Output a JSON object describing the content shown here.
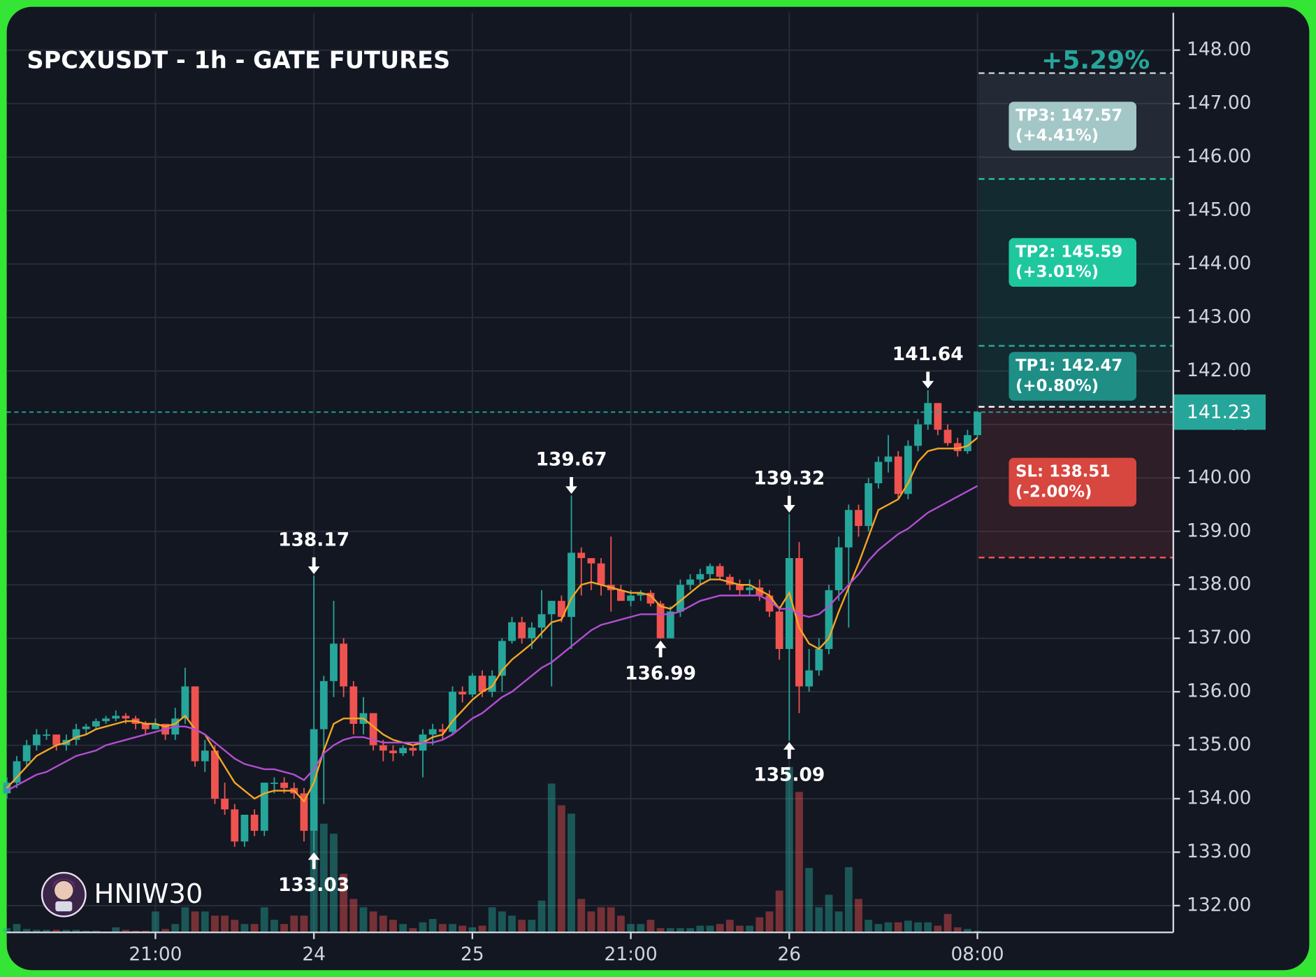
{
  "chart_data": {
    "type": "candlestick",
    "title": "SPCXUSDT - 1h - GATE FUTURES",
    "total_change": "+5.29%",
    "watermark": "HNIW30",
    "up_color": "#26a69a",
    "down_color": "#ef5350",
    "grid": true,
    "ylim": [
      131.5,
      148.7
    ],
    "yticks": [
      {
        "value": 132,
        "label": "132.00"
      },
      {
        "value": 133,
        "label": "133.00"
      },
      {
        "value": 134,
        "label": "134.00"
      },
      {
        "value": 135,
        "label": "135.00"
      },
      {
        "value": 136,
        "label": "136.00"
      },
      {
        "value": 137,
        "label": "137.00"
      },
      {
        "value": 138,
        "label": "138.00"
      },
      {
        "value": 139,
        "label": "139.00"
      },
      {
        "value": 140,
        "label": "140.00"
      },
      {
        "value": 141,
        "label": "141.00"
      },
      {
        "value": 142,
        "label": "142.00"
      },
      {
        "value": 143,
        "label": "143.00"
      },
      {
        "value": 144,
        "label": "144.00"
      },
      {
        "value": 145,
        "label": "145.00"
      },
      {
        "value": 146,
        "label": "146.00"
      },
      {
        "value": 147,
        "label": "147.00"
      },
      {
        "value": 148,
        "label": "148.00"
      }
    ],
    "categories": [
      null,
      null,
      null,
      null,
      null,
      null,
      null,
      null,
      null,
      null,
      null,
      null,
      null,
      null,
      null,
      "21:00",
      null,
      null,
      null,
      null,
      null,
      null,
      null,
      null,
      null,
      null,
      null,
      null,
      null,
      null,
      null,
      "24",
      null,
      null,
      null,
      null,
      null,
      null,
      null,
      null,
      null,
      null,
      null,
      null,
      null,
      null,
      null,
      "25",
      null,
      null,
      null,
      null,
      null,
      null,
      null,
      null,
      null,
      null,
      null,
      null,
      null,
      null,
      null,
      "21:00",
      null,
      null,
      null,
      null,
      null,
      null,
      null,
      null,
      null,
      null,
      null,
      null,
      null,
      null,
      null,
      "26",
      null,
      null,
      null,
      null,
      null,
      null,
      null,
      null,
      null,
      null,
      null,
      null,
      null,
      null,
      null,
      null,
      null,
      null,
      "08:00"
    ],
    "open": [
      134.1,
      134.3,
      134.7,
      135.0,
      135.2,
      135.2,
      135.0,
      135.1,
      135.3,
      135.35,
      135.45,
      135.5,
      135.55,
      135.5,
      135.4,
      135.3,
      135.4,
      135.2,
      135.5,
      136.1,
      134.7,
      134.9,
      134.0,
      133.8,
      133.2,
      133.7,
      133.4,
      134.3,
      134.3,
      134.2,
      134.1,
      133.4,
      135.3,
      136.2,
      136.9,
      136.1,
      135.4,
      135.6,
      135.0,
      134.9,
      134.85,
      134.95,
      134.9,
      135.2,
      135.3,
      135.25,
      136.0,
      135.95,
      136.3,
      136.0,
      136.3,
      136.95,
      137.3,
      137.0,
      137.2,
      137.45,
      137.7,
      137.4,
      138.6,
      138.5,
      138.4,
      138.0,
      137.9,
      137.7,
      137.8,
      137.85,
      137.65,
      137.0,
      137.5,
      138.0,
      138.1,
      138.2,
      138.35,
      138.15,
      138.0,
      137.9,
      137.95,
      137.8,
      137.5,
      136.8,
      138.5,
      136.1,
      136.4,
      136.8,
      137.9,
      138.7,
      139.4,
      139.1,
      139.9,
      140.3,
      140.4,
      139.7,
      140.6,
      141.0,
      141.4,
      140.9,
      140.65,
      140.5,
      140.8
    ],
    "high": [
      134.4,
      134.8,
      135.1,
      135.3,
      135.3,
      135.2,
      135.2,
      135.4,
      135.4,
      135.5,
      135.55,
      135.65,
      135.6,
      135.55,
      135.45,
      135.5,
      135.4,
      135.7,
      136.45,
      136.1,
      135.1,
      135.0,
      134.3,
      133.9,
      133.7,
      133.8,
      134.3,
      134.4,
      134.4,
      134.3,
      134.2,
      138.17,
      136.3,
      137.7,
      137.0,
      136.2,
      135.9,
      135.6,
      135.1,
      135.0,
      135.0,
      135.0,
      135.3,
      135.4,
      135.4,
      136.1,
      136.1,
      136.35,
      136.4,
      136.4,
      137.0,
      137.4,
      137.4,
      137.3,
      137.9,
      137.7,
      137.8,
      139.67,
      138.7,
      138.5,
      138.5,
      138.9,
      138.0,
      137.9,
      137.9,
      137.9,
      137.7,
      137.6,
      138.1,
      138.2,
      138.3,
      138.4,
      138.4,
      138.2,
      138.1,
      138.1,
      138.1,
      137.9,
      137.6,
      139.32,
      138.8,
      136.8,
      137.0,
      138.0,
      138.9,
      139.5,
      139.5,
      140.0,
      140.4,
      140.8,
      140.5,
      140.7,
      141.1,
      141.64,
      141.4,
      141.0,
      140.75,
      140.9,
      141.25
    ],
    "low": [
      134.0,
      134.2,
      134.6,
      134.9,
      135.1,
      134.9,
      134.9,
      135.0,
      135.2,
      135.3,
      135.4,
      135.45,
      135.4,
      135.3,
      135.2,
      135.3,
      135.1,
      135.1,
      135.4,
      134.6,
      134.5,
      133.9,
      133.7,
      133.1,
      133.1,
      133.3,
      133.3,
      134.1,
      134.1,
      134.0,
      133.2,
      133.03,
      133.9,
      135.9,
      135.9,
      135.2,
      135.2,
      134.9,
      134.7,
      134.7,
      134.8,
      134.8,
      134.4,
      135.0,
      135.1,
      135.2,
      135.8,
      135.9,
      135.9,
      135.9,
      136.0,
      136.9,
      136.9,
      136.8,
      137.0,
      136.1,
      137.3,
      136.8,
      137.8,
      137.9,
      137.8,
      137.5,
      137.7,
      137.6,
      137.7,
      137.6,
      136.99,
      137.0,
      137.4,
      137.9,
      138.0,
      138.1,
      138.1,
      137.9,
      137.8,
      137.8,
      137.7,
      137.4,
      136.6,
      135.09,
      135.6,
      136.0,
      136.3,
      136.7,
      137.7,
      137.2,
      138.9,
      139.0,
      139.8,
      140.1,
      139.6,
      139.6,
      140.5,
      140.9,
      140.8,
      140.6,
      140.4,
      140.45,
      140.75
    ],
    "close": [
      134.3,
      134.7,
      135.0,
      135.2,
      135.2,
      135.0,
      135.1,
      135.3,
      135.35,
      135.45,
      135.5,
      135.55,
      135.5,
      135.4,
      135.3,
      135.4,
      135.2,
      135.5,
      136.1,
      134.7,
      134.9,
      134.0,
      133.8,
      133.2,
      133.7,
      133.4,
      134.3,
      134.3,
      134.2,
      134.1,
      133.4,
      135.3,
      136.2,
      136.9,
      136.1,
      135.4,
      135.6,
      135.0,
      134.9,
      134.85,
      134.95,
      134.9,
      135.2,
      135.3,
      135.25,
      136.0,
      135.95,
      136.3,
      136.0,
      136.3,
      136.95,
      137.3,
      137.0,
      137.2,
      137.45,
      137.7,
      137.4,
      138.6,
      138.5,
      138.4,
      138.0,
      137.9,
      137.7,
      137.8,
      137.85,
      137.65,
      137.0,
      137.5,
      138.0,
      138.1,
      138.2,
      138.35,
      138.15,
      138.0,
      137.9,
      137.95,
      137.8,
      137.5,
      136.8,
      138.5,
      136.1,
      136.4,
      136.8,
      137.9,
      138.7,
      139.4,
      139.1,
      139.9,
      140.3,
      140.4,
      139.7,
      140.6,
      141.0,
      141.4,
      140.9,
      140.65,
      140.5,
      140.8,
      141.23
    ],
    "volume": [
      5,
      10,
      4,
      3,
      3,
      3,
      3,
      3,
      2,
      2,
      0,
      6,
      3,
      2,
      2,
      25,
      4,
      10,
      30,
      25,
      25,
      20,
      20,
      15,
      10,
      10,
      30,
      15,
      10,
      20,
      20,
      125,
      130,
      118,
      70,
      40,
      30,
      25,
      20,
      15,
      10,
      5,
      12,
      16,
      10,
      10,
      8,
      6,
      8,
      30,
      25,
      20,
      15,
      15,
      38,
      178,
      152,
      142,
      40,
      25,
      30,
      30,
      20,
      10,
      10,
      15,
      5,
      5,
      5,
      5,
      8,
      8,
      10,
      15,
      8,
      8,
      18,
      25,
      50,
      198,
      168,
      77,
      30,
      45,
      25,
      78,
      40,
      15,
      10,
      12,
      12,
      14,
      12,
      12,
      8,
      22,
      6,
      4,
      2
    ],
    "overlays": [
      {
        "color": "#f5a623",
        "values": [
          134.2,
          134.4,
          134.6,
          134.8,
          134.9,
          135.0,
          135.05,
          135.15,
          135.2,
          135.3,
          135.35,
          135.4,
          135.45,
          135.45,
          135.4,
          135.4,
          135.35,
          135.4,
          135.55,
          135.3,
          135.2,
          134.9,
          134.6,
          134.3,
          134.15,
          134.0,
          134.1,
          134.15,
          134.15,
          134.15,
          133.95,
          134.3,
          134.9,
          135.4,
          135.5,
          135.5,
          135.5,
          135.35,
          135.2,
          135.1,
          135.05,
          135.0,
          135.05,
          135.15,
          135.2,
          135.45,
          135.65,
          135.85,
          136.0,
          136.1,
          136.4,
          136.6,
          136.75,
          136.9,
          137.1,
          137.3,
          137.35,
          137.75,
          138.0,
          138.05,
          138.0,
          137.95,
          137.9,
          137.85,
          137.85,
          137.8,
          137.6,
          137.55,
          137.7,
          137.85,
          138.0,
          138.1,
          138.1,
          138.05,
          138.0,
          138.0,
          137.9,
          137.8,
          137.55,
          137.85,
          137.2,
          136.9,
          136.8,
          137.0,
          137.5,
          137.95,
          138.4,
          138.9,
          139.4,
          139.5,
          139.6,
          139.9,
          140.3,
          140.5,
          140.55,
          140.55,
          140.55,
          140.6,
          140.75
        ]
      },
      {
        "color": "#b24fd1",
        "values": [
          134.15,
          134.25,
          134.35,
          134.45,
          134.5,
          134.6,
          134.7,
          134.8,
          134.85,
          134.9,
          135.0,
          135.05,
          135.1,
          135.15,
          135.2,
          135.25,
          135.3,
          135.35,
          135.35,
          135.3,
          135.2,
          135.05,
          134.9,
          134.75,
          134.65,
          134.6,
          134.55,
          134.55,
          134.5,
          134.45,
          134.35,
          134.55,
          134.85,
          135.0,
          135.1,
          135.15,
          135.15,
          135.1,
          135.05,
          135.05,
          135.05,
          135.05,
          135.05,
          135.05,
          135.1,
          135.2,
          135.35,
          135.5,
          135.6,
          135.75,
          135.9,
          136.0,
          136.15,
          136.3,
          136.45,
          136.55,
          136.7,
          136.85,
          137.0,
          137.15,
          137.25,
          137.3,
          137.35,
          137.4,
          137.45,
          137.45,
          137.45,
          137.45,
          137.5,
          137.6,
          137.7,
          137.75,
          137.8,
          137.8,
          137.8,
          137.8,
          137.8,
          137.7,
          137.55,
          137.55,
          137.45,
          137.4,
          137.45,
          137.6,
          137.8,
          138.0,
          138.2,
          138.45,
          138.65,
          138.8,
          138.95,
          139.05,
          139.2,
          139.35,
          139.45,
          139.55,
          139.65,
          139.75,
          139.85
        ]
      }
    ],
    "marked_highs": [
      31,
      57,
      79,
      93
    ],
    "marked_lows": [
      31,
      66,
      79
    ],
    "entry": 141.33,
    "levels": [
      {
        "label": "TP3: 147.57",
        "change": "(+4.41%)",
        "value": 147.57,
        "color": "#a3c7c6",
        "line_color": "#c9d3d3",
        "zone_color": "#7f8c99"
      },
      {
        "label": "TP2: 145.59",
        "change": "(+3.01%)",
        "value": 145.59,
        "color": "#1fc79f",
        "line_color": "#26c3a3",
        "zone_color": "#1a8f82"
      },
      {
        "label": "TP1: 142.47",
        "change": "(+0.80%)",
        "value": 142.47,
        "color": "#1f8f86",
        "line_color": "#26a69a",
        "zone_color": "#1a8f82"
      },
      {
        "label": "SL: 138.51",
        "change": "(-2.00%)",
        "value": 138.51,
        "color": "#d7463f",
        "line_color": "#ef5350",
        "zone_color": "#c0454a"
      }
    ]
  }
}
